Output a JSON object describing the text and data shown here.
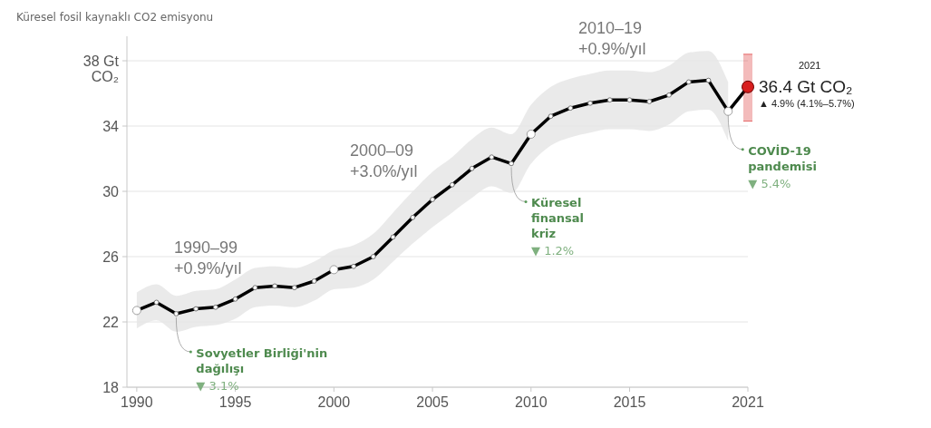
{
  "chart_data": {
    "type": "line",
    "title": "Küresel fosil kaynaklı CO2 emisyonu",
    "x": [
      1990,
      1991,
      1992,
      1993,
      1994,
      1995,
      1996,
      1997,
      1998,
      1999,
      2000,
      2001,
      2002,
      2003,
      2004,
      2005,
      2006,
      2007,
      2008,
      2009,
      2010,
      2011,
      2012,
      2013,
      2014,
      2015,
      2016,
      2017,
      2018,
      2019,
      2020,
      2021
    ],
    "series": [
      {
        "color": "#000000",
        "values": [
          22.7,
          23.2,
          22.5,
          22.8,
          22.9,
          23.4,
          24.1,
          24.2,
          24.1,
          24.5,
          25.2,
          25.4,
          26.0,
          27.2,
          28.4,
          29.5,
          30.4,
          31.4,
          32.1,
          31.7,
          33.5,
          34.6,
          35.1,
          35.4,
          35.6,
          35.6,
          35.5,
          35.9,
          36.7,
          36.8,
          34.9,
          36.4
        ],
        "lower": [
          21.6,
          22.1,
          21.4,
          21.7,
          21.8,
          22.2,
          22.9,
          23.0,
          22.9,
          23.3,
          24.0,
          24.1,
          24.6,
          25.7,
          26.8,
          27.8,
          28.7,
          29.6,
          30.3,
          29.9,
          31.7,
          32.8,
          33.3,
          33.6,
          33.8,
          33.8,
          33.7,
          34.1,
          34.9,
          35.0,
          33.1,
          null
        ],
        "upper": [
          23.8,
          24.3,
          23.6,
          23.9,
          24.0,
          24.6,
          25.3,
          25.4,
          25.3,
          25.7,
          26.4,
          26.7,
          27.4,
          28.7,
          30.0,
          31.2,
          32.1,
          33.2,
          33.9,
          33.5,
          35.3,
          36.4,
          36.9,
          37.2,
          37.4,
          37.4,
          37.3,
          37.7,
          38.5,
          38.6,
          36.7,
          null
        ]
      },
      {
        "type": "scatter",
        "color": "#d81e1e",
        "x": [
          2021
        ],
        "values": [
          36.4
        ],
        "errors": [
          [
            34.3,
            38.4
          ]
        ]
      }
    ],
    "xlim": [
      1989.5,
      2021
    ],
    "xticks": [
      1990,
      1995,
      2000,
      2005,
      2010,
      2015,
      2021
    ],
    "ylim": [
      18,
      39.5
    ],
    "yticks": [
      18,
      22,
      26,
      30,
      34,
      {
        "value": 38,
        "label": "38 Gt\nCO₂"
      }
    ],
    "grid": "y",
    "marker": "circle",
    "annotations": [
      {
        "text": "1990–99\n+0.9%/yıl"
      },
      {
        "text": "2000–09\n+3.0%/yıl"
      },
      {
        "text": "2010–19\n+0.9%/yıl"
      },
      {
        "text": "Sovyetler Birliği'nin\ndağılışı\n▼ 3.1%",
        "x": 1992,
        "y": 22.5
      },
      {
        "text": "Küresel\nfinansal\nkriz\n▼ 1.2%",
        "x": 2009,
        "y": 31.7
      },
      {
        "text": "COVİD-19\npandemisi\n▼ 5.4%",
        "x": 2020,
        "y": 34.9
      },
      {
        "text": "2021\n36.4 Gt CO₂\n▲ 4.9% (4.1%–5.7%)",
        "x": 2021,
        "y": 36.4
      }
    ]
  }
}
